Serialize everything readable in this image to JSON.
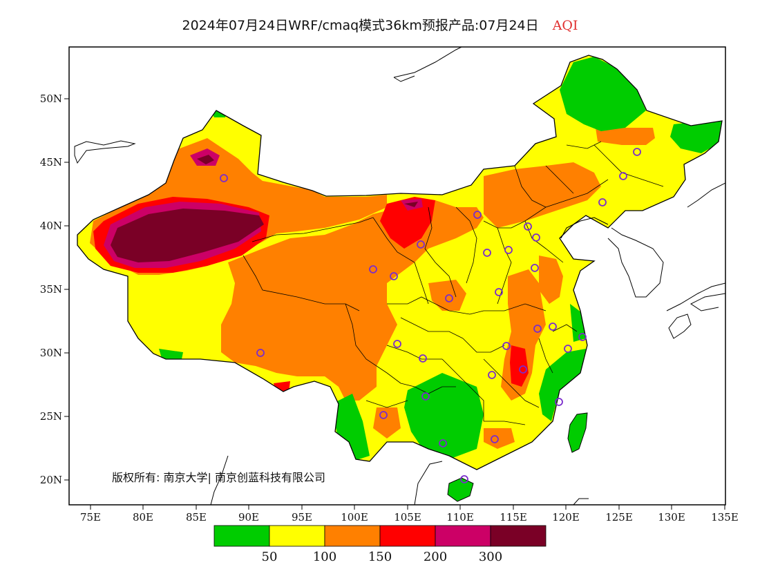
{
  "title": {
    "main": "2024年07月24日WRF/cmaq模式36km预报产品:07月24日",
    "variable": "AQI"
  },
  "colors": {
    "good": "#00cc00",
    "moderate": "#ffff00",
    "usg": "#ff8000",
    "unhealthy": "#ff0000",
    "very_unhealthy": "#cc0066",
    "hazardous": "#7a0026",
    "station_marker": "#7a2ccc"
  },
  "axes": {
    "x_ticks": [
      "75E",
      "80E",
      "85E",
      "90E",
      "95E",
      "100E",
      "105E",
      "110E",
      "115E",
      "120E",
      "125E",
      "130E",
      "135E"
    ],
    "y_ticks": [
      "50N",
      "45N",
      "40N",
      "35N",
      "30N",
      "25N",
      "20N"
    ]
  },
  "copyright": "版权所有: 南京大学| 南京创蓝科技有限公司",
  "legend": {
    "labels": [
      "50",
      "100",
      "150",
      "200",
      "300"
    ]
  }
}
